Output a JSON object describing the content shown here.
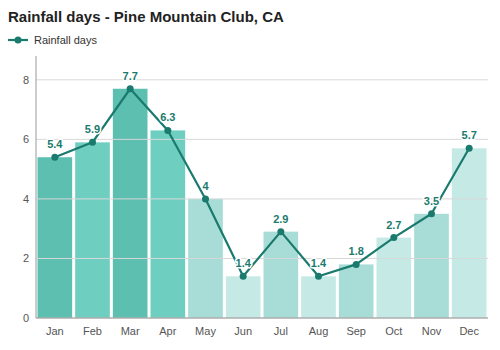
{
  "chart_data": {
    "type": "bar",
    "title": "Rainfall days - Pine Mountain Club, CA",
    "categories": [
      "Jan",
      "Feb",
      "Mar",
      "Apr",
      "May",
      "Jun",
      "Jul",
      "Aug",
      "Sep",
      "Oct",
      "Nov",
      "Dec"
    ],
    "series": [
      {
        "type": "bar",
        "colors": [
          "#5cbfb0",
          "#6ecfc0",
          "#5cbfb0",
          "#6ecfc0",
          "#a8ddd7",
          "#c5eae6",
          "#a8ddd7",
          "#c5eae6",
          "#a8ddd7",
          "#c5eae6",
          "#a8ddd7",
          "#c5eae6"
        ],
        "values": [
          5.4,
          5.9,
          7.7,
          6.3,
          4.0,
          1.4,
          2.9,
          1.4,
          1.8,
          2.7,
          3.5,
          5.7
        ]
      },
      {
        "name": "Rainfall days",
        "type": "line",
        "color": "#1a7a6e",
        "marker": "circle",
        "values": [
          5.4,
          5.9,
          7.7,
          6.3,
          4.0,
          1.4,
          2.9,
          1.4,
          1.8,
          2.7,
          3.5,
          5.7
        ]
      }
    ],
    "ylim": [
      0,
      8.8
    ],
    "yticks": [
      0,
      2,
      4,
      6,
      8
    ],
    "grid": true,
    "legend": "upper left",
    "data_labels": true
  }
}
